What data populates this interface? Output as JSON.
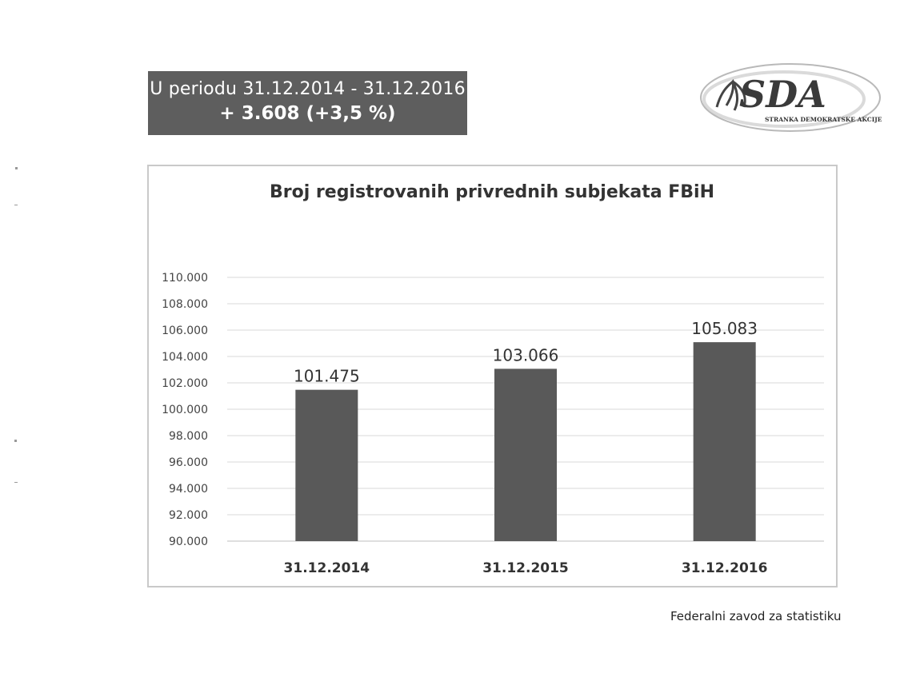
{
  "summary": {
    "period": "U periodu 31.12.2014 - 31.12.2016",
    "change": "+ 3.608  (+3,5 %)"
  },
  "logo": {
    "icon": "sda-lily-logo",
    "abbreviation": "SDA",
    "full_name": "STRANKA DEMOKRATSKE AKCIJE"
  },
  "source": "Federalni zavod za statistiku",
  "colors": {
    "bar": "#595959",
    "summary_bg": "#5e5e5e",
    "grid": "#d9d9d9",
    "frame": "#c9c9c9"
  },
  "chart_data": {
    "type": "bar",
    "title": "Broj registrovanih privrednih subjekata FBiH",
    "categories": [
      "31.12.2014",
      "31.12.2015",
      "31.12.2016"
    ],
    "values": [
      101475,
      103066,
      105083
    ],
    "value_labels": [
      "101.475",
      "103.066",
      "105.083"
    ],
    "ylim": [
      90000,
      110000
    ],
    "yticks": [
      90000,
      92000,
      94000,
      96000,
      98000,
      100000,
      102000,
      104000,
      106000,
      108000,
      110000
    ],
    "ytick_labels": [
      "90.000",
      "92.000",
      "94.000",
      "96.000",
      "98.000",
      "100.000",
      "102.000",
      "104.000",
      "106.000",
      "108.000",
      "110.000"
    ],
    "grid": true,
    "legend": "none"
  }
}
